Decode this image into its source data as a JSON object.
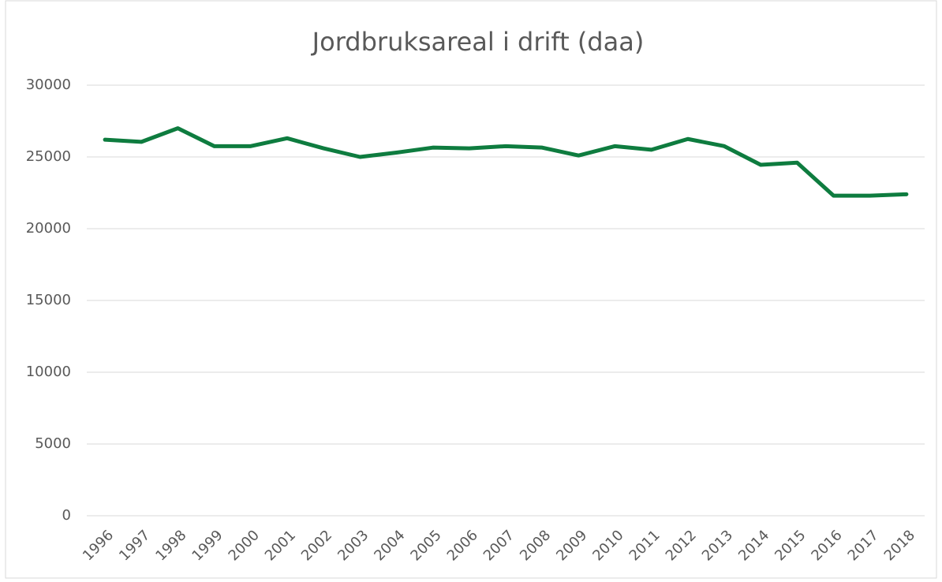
{
  "chart_data": {
    "type": "line",
    "title": "Jordbruksareal i drift (daa)",
    "categories": [
      "1996",
      "1997",
      "1998",
      "1999",
      "2000",
      "2001",
      "2002",
      "2003",
      "2004",
      "2005",
      "2006",
      "2007",
      "2008",
      "2009",
      "2010",
      "2011",
      "2012",
      "2013",
      "2014",
      "2015",
      "2016",
      "2017",
      "2018"
    ],
    "values": [
      26200,
      26050,
      27000,
      25750,
      25750,
      26300,
      25600,
      25000,
      25300,
      25650,
      25600,
      25750,
      25650,
      25100,
      25750,
      25500,
      26250,
      25750,
      24450,
      24600,
      22300,
      22300,
      22400
    ],
    "color": "#0e7c3f",
    "ylim": [
      0,
      30000
    ],
    "yticks": [
      0,
      5000,
      10000,
      15000,
      20000,
      25000,
      30000
    ],
    "grid": true
  }
}
